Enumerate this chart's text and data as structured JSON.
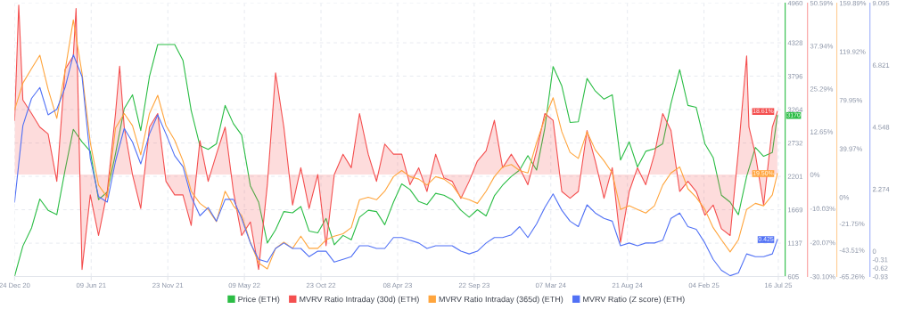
{
  "chart_data": [
    {
      "type": "line",
      "grid": true,
      "legend": "bottom",
      "x": [
        "2020-12-24",
        "2021-01-11",
        "2021-01-30",
        "2021-02-17",
        "2021-03-07",
        "2021-03-26",
        "2021-04-13",
        "2021-05-01",
        "2021-05-20",
        "2021-06-07",
        "2021-06-25",
        "2021-07-14",
        "2021-08-01",
        "2021-08-20",
        "2021-09-07",
        "2021-09-25",
        "2021-10-14",
        "2021-11-01",
        "2021-11-19",
        "2021-12-08",
        "2021-12-26",
        "2022-01-13",
        "2022-02-01",
        "2022-02-19",
        "2022-03-09",
        "2022-03-28",
        "2022-04-15",
        "2022-05-03",
        "2022-05-22",
        "2022-06-09",
        "2022-06-28",
        "2022-07-16",
        "2022-08-03",
        "2022-08-22",
        "2022-09-09",
        "2022-09-27",
        "2022-10-16",
        "2022-11-03",
        "2022-11-21",
        "2022-12-10",
        "2022-12-28",
        "2023-01-15",
        "2023-02-03",
        "2023-02-21",
        "2023-03-11",
        "2023-03-30",
        "2023-04-17",
        "2023-05-05",
        "2023-05-24",
        "2023-06-11",
        "2023-06-30",
        "2023-07-18",
        "2023-08-05",
        "2023-08-24",
        "2023-09-11",
        "2023-09-29",
        "2023-10-18",
        "2023-11-05",
        "2023-11-23",
        "2023-12-12",
        "2023-12-30",
        "2024-01-17",
        "2024-02-05",
        "2024-02-23",
        "2024-03-12",
        "2024-03-31",
        "2024-04-18",
        "2024-05-06",
        "2024-05-25",
        "2024-06-12",
        "2024-07-01",
        "2024-07-19",
        "2024-08-06",
        "2024-08-25",
        "2024-09-12",
        "2024-09-30",
        "2024-10-19",
        "2024-11-06",
        "2024-11-24",
        "2024-12-13",
        "2024-12-31",
        "2025-01-18",
        "2025-02-06",
        "2025-02-24",
        "2025-03-14",
        "2025-04-02",
        "2025-04-20",
        "2025-05-08",
        "2025-05-27",
        "2025-06-14",
        "2025-07-03",
        "2025-07-14"
      ],
      "xlim": [
        "2020-12-24",
        "2025-07-31"
      ],
      "xticks": [
        {
          "value": "2020-12-24",
          "label": "24 Dec 20"
        },
        {
          "value": "2021-06-09",
          "label": "09 Jun 21"
        },
        {
          "value": "2021-11-23",
          "label": "23 Nov 21"
        },
        {
          "value": "2022-05-09",
          "label": "09 May 22"
        },
        {
          "value": "2022-10-23",
          "label": "23 Oct 22"
        },
        {
          "value": "2023-04-08",
          "label": "08 Apr 23"
        },
        {
          "value": "2023-09-22",
          "label": "22 Sep 23"
        },
        {
          "value": "2024-03-07",
          "label": "07 Mar 24"
        },
        {
          "value": "2024-08-21",
          "label": "21 Aug 24"
        },
        {
          "value": "2025-02-04",
          "label": "04 Feb 25"
        },
        {
          "value": "2025-07-16",
          "label": "16 Jul 25"
        }
      ],
      "ylim": [
        605,
        4960
      ],
      "yticks": [
        605,
        1137,
        1669,
        2201,
        2732,
        3264,
        3796,
        4328,
        4960
      ],
      "y2lim": [
        -30.1,
        50.59
      ],
      "y2ticks": [
        {
          "value": -30.1,
          "label": "-30.10%"
        },
        {
          "value": -20.07,
          "label": "-20.07%"
        },
        {
          "value": -10.03,
          "label": "-10.03%"
        },
        {
          "value": 0,
          "label": "0%"
        },
        {
          "value": 12.65,
          "label": "12.65%"
        },
        {
          "value": 25.29,
          "label": "25.29%"
        },
        {
          "value": 37.94,
          "label": "37.94%"
        },
        {
          "value": 50.59,
          "label": "50.59%"
        }
      ],
      "y3lim": [
        -65.26,
        159.89
      ],
      "y3ticks": [
        {
          "value": -65.26,
          "label": "-65.26%"
        },
        {
          "value": -43.51,
          "label": "-43.51%"
        },
        {
          "value": -21.75,
          "label": "-21.75%"
        },
        {
          "value": 0,
          "label": "0%"
        },
        {
          "value": 39.97,
          "label": "39.97%"
        },
        {
          "value": 79.95,
          "label": "79.95%"
        },
        {
          "value": 119.92,
          "label": "119.92%"
        },
        {
          "value": 159.89,
          "label": "159.89%"
        }
      ],
      "series": [
        {
          "name": "Price (ETH)",
          "axis": "y",
          "color": "#2bbd45",
          "values": [
            610,
            1090,
            1380,
            1840,
            1660,
            1590,
            2300,
            2950,
            2750,
            2600,
            1830,
            1950,
            2560,
            3280,
            3500,
            2930,
            3790,
            4300,
            4300,
            4300,
            4050,
            3250,
            2690,
            2630,
            2720,
            3330,
            3040,
            2860,
            2050,
            1790,
            1140,
            1350,
            1640,
            1620,
            1720,
            1330,
            1300,
            1530,
            1110,
            1260,
            1190,
            1550,
            1660,
            1640,
            1430,
            1790,
            2080,
            1990,
            1800,
            1750,
            1930,
            1900,
            1830,
            1660,
            1550,
            1670,
            1570,
            1890,
            2060,
            2200,
            2300,
            2530,
            2300,
            2970,
            3950,
            3640,
            3060,
            3070,
            3760,
            3560,
            3430,
            3500,
            2460,
            2750,
            2350,
            2600,
            2640,
            2720,
            3360,
            3900,
            3330,
            3300,
            2720,
            2500,
            1900,
            1790,
            1590,
            2200,
            2660,
            2520,
            2580,
            3170
          ],
          "value_labels": [
            null,
            null,
            null,
            null,
            null,
            null,
            null,
            null,
            null,
            null,
            null,
            null,
            null,
            null,
            null,
            null,
            null,
            null,
            null,
            null,
            null,
            null,
            null,
            null,
            null,
            null,
            null,
            null,
            null,
            null,
            null,
            null,
            null,
            null,
            null,
            null,
            null,
            null,
            null,
            null,
            null,
            null,
            null,
            null,
            null,
            null,
            null,
            null,
            null,
            null,
            null,
            null,
            null,
            null,
            null,
            null,
            null,
            null,
            null,
            null,
            null,
            null,
            null,
            null,
            null,
            null,
            null,
            null,
            null,
            null,
            null,
            null,
            null,
            null,
            null,
            null,
            null,
            null,
            null,
            null,
            null,
            null,
            null,
            null,
            null,
            null,
            null,
            null,
            null,
            null,
            null,
            "3170"
          ]
        },
        {
          "name": "MVRV Ratio Intraday (30d) (ETH)",
          "type": "area",
          "axis": "y2",
          "color": "#f44f4f",
          "x": [
            "2020-12-24",
            "2021-01-02",
            "2021-01-11",
            "2021-01-30",
            "2021-02-17",
            "2021-03-07",
            "2021-03-26",
            "2021-04-13",
            "2021-05-01",
            "2021-05-07",
            "2021-05-20",
            "2021-06-07",
            "2021-06-25",
            "2021-07-14",
            "2021-08-01",
            "2021-08-10",
            "2021-08-20",
            "2021-09-07",
            "2021-09-25",
            "2021-10-14",
            "2021-11-01",
            "2021-11-19",
            "2021-12-08",
            "2021-12-26",
            "2022-01-13",
            "2022-02-01",
            "2022-02-19",
            "2022-03-09",
            "2022-03-28",
            "2022-04-15",
            "2022-05-03",
            "2022-05-22",
            "2022-06-09",
            "2022-06-28",
            "2022-07-16",
            "2022-08-03",
            "2022-08-22",
            "2022-09-09",
            "2022-09-27",
            "2022-10-16",
            "2022-11-03",
            "2022-11-21",
            "2022-12-10",
            "2022-12-28",
            "2023-01-15",
            "2023-02-03",
            "2023-02-21",
            "2023-03-11",
            "2023-03-30",
            "2023-04-17",
            "2023-05-05",
            "2023-05-24",
            "2023-06-11",
            "2023-06-30",
            "2023-07-18",
            "2023-08-05",
            "2023-08-24",
            "2023-09-11",
            "2023-09-29",
            "2023-10-18",
            "2023-11-05",
            "2023-11-23",
            "2023-12-12",
            "2023-12-30",
            "2024-01-17",
            "2024-02-05",
            "2024-02-23",
            "2024-03-12",
            "2024-03-31",
            "2024-04-18",
            "2024-05-06",
            "2024-05-25",
            "2024-06-12",
            "2024-07-01",
            "2024-07-19",
            "2024-08-06",
            "2024-08-25",
            "2024-09-12",
            "2024-09-30",
            "2024-10-19",
            "2024-11-06",
            "2024-11-24",
            "2024-12-13",
            "2024-12-31",
            "2025-01-18",
            "2025-02-06",
            "2025-02-24",
            "2025-03-14",
            "2025-04-02",
            "2025-04-20",
            "2025-05-08",
            "2025-05-13",
            "2025-05-27",
            "2025-06-14",
            "2025-07-03",
            "2025-07-14"
          ],
          "values": [
            16,
            50,
            22,
            18,
            14,
            12,
            -2,
            31,
            35,
            49,
            -28,
            -6,
            -18,
            -5,
            18,
            32,
            14,
            0,
            -10,
            14,
            18,
            -2,
            -6,
            -6,
            -15,
            10,
            -2,
            6,
            14,
            -5,
            -18,
            -14,
            -28,
            -3,
            30,
            14,
            -9,
            2,
            -10,
            0,
            -21,
            0,
            6,
            2,
            18,
            6,
            -2,
            9,
            6,
            6,
            -3,
            2,
            -5,
            6,
            -1,
            -2,
            -7,
            -2,
            4,
            7,
            16,
            2,
            6,
            2,
            -3,
            7,
            18,
            16,
            -5,
            -7,
            -5,
            13,
            4,
            -7,
            2,
            -20,
            -5,
            2,
            -3,
            6,
            18,
            13,
            -5,
            -2,
            -5,
            -12,
            -9,
            -16,
            -18,
            7,
            35,
            14,
            6,
            -9,
            14,
            18.61
          ],
          "value_labels": [
            null,
            null,
            null,
            null,
            null,
            null,
            null,
            null,
            null,
            null,
            null,
            null,
            null,
            null,
            null,
            null,
            null,
            null,
            null,
            null,
            null,
            null,
            null,
            null,
            null,
            null,
            null,
            null,
            null,
            null,
            null,
            null,
            null,
            null,
            null,
            null,
            null,
            null,
            null,
            null,
            null,
            null,
            null,
            null,
            null,
            null,
            null,
            null,
            null,
            null,
            null,
            null,
            null,
            null,
            null,
            null,
            null,
            null,
            null,
            null,
            null,
            null,
            null,
            null,
            null,
            null,
            null,
            null,
            null,
            null,
            null,
            null,
            null,
            null,
            null,
            null,
            null,
            null,
            null,
            null,
            null,
            null,
            null,
            null,
            null,
            null,
            null,
            null,
            null,
            null,
            null,
            null,
            null,
            null,
            null,
            "18.61%"
          ]
        },
        {
          "name": "MVRV Ratio Intraday (365d) (ETH)",
          "axis": "y3",
          "color": "#ffa53d",
          "values": [
            72,
            94,
            106,
            117,
            89,
            65,
            104,
            146,
            102,
            45,
            10,
            0,
            57,
            69,
            59,
            35,
            69,
            84,
            59,
            47,
            30,
            5,
            -5,
            -10,
            -20,
            5,
            -7,
            -15,
            -37,
            -54,
            -59,
            -42,
            -37,
            -42,
            -32,
            -42,
            -42,
            -35,
            -32,
            -30,
            -25,
            -2,
            0,
            -2,
            5,
            17,
            22,
            17,
            15,
            10,
            17,
            15,
            10,
            0,
            -2,
            -5,
            5,
            17,
            25,
            27,
            22,
            20,
            45,
            65,
            82,
            54,
            37,
            32,
            54,
            39,
            30,
            20,
            -10,
            -7,
            -10,
            -13,
            -7,
            10,
            20,
            25,
            7,
            0,
            -10,
            -25,
            -35,
            -45,
            -35,
            -10,
            -5,
            -7,
            2,
            19.5
          ],
          "value_labels": [
            null,
            null,
            null,
            null,
            null,
            null,
            null,
            null,
            null,
            null,
            null,
            null,
            null,
            null,
            null,
            null,
            null,
            null,
            null,
            null,
            null,
            null,
            null,
            null,
            null,
            null,
            null,
            null,
            null,
            null,
            null,
            null,
            null,
            null,
            null,
            null,
            null,
            null,
            null,
            null,
            null,
            null,
            null,
            null,
            null,
            null,
            null,
            null,
            null,
            null,
            null,
            null,
            null,
            null,
            null,
            null,
            null,
            null,
            null,
            null,
            null,
            null,
            null,
            null,
            null,
            null,
            null,
            null,
            null,
            null,
            null,
            null,
            null,
            null,
            null,
            null,
            null,
            null,
            null,
            null,
            null,
            null,
            null,
            null,
            null,
            null,
            null,
            null,
            null,
            null,
            null,
            "19.50%"
          ]
        }
      ]
    },
    {
      "type": "line",
      "legend": "bottom",
      "tick_labels": "y",
      "x": [
        "2020-12-24",
        "2021-01-11",
        "2021-01-30",
        "2021-02-17",
        "2021-03-07",
        "2021-03-26",
        "2021-04-13",
        "2021-05-01",
        "2021-05-20",
        "2021-06-07",
        "2021-06-25",
        "2021-07-14",
        "2021-08-01",
        "2021-08-20",
        "2021-09-07",
        "2021-09-25",
        "2021-10-14",
        "2021-11-01",
        "2021-11-19",
        "2021-12-08",
        "2021-12-26",
        "2022-01-13",
        "2022-02-01",
        "2022-02-19",
        "2022-03-09",
        "2022-03-28",
        "2022-04-15",
        "2022-05-03",
        "2022-05-22",
        "2022-06-09",
        "2022-06-28",
        "2022-07-16",
        "2022-08-03",
        "2022-08-22",
        "2022-09-09",
        "2022-09-27",
        "2022-10-16",
        "2022-11-03",
        "2022-11-21",
        "2022-12-10",
        "2022-12-28",
        "2023-01-15",
        "2023-02-03",
        "2023-02-21",
        "2023-03-11",
        "2023-03-30",
        "2023-04-17",
        "2023-05-05",
        "2023-05-24",
        "2023-06-11",
        "2023-06-30",
        "2023-07-18",
        "2023-08-05",
        "2023-08-24",
        "2023-09-11",
        "2023-09-29",
        "2023-10-18",
        "2023-11-05",
        "2023-11-23",
        "2023-12-12",
        "2023-12-30",
        "2024-01-17",
        "2024-02-05",
        "2024-02-23",
        "2024-03-12",
        "2024-03-31",
        "2024-04-18",
        "2024-05-06",
        "2024-05-25",
        "2024-06-12",
        "2024-07-01",
        "2024-07-19",
        "2024-08-06",
        "2024-08-25",
        "2024-09-12",
        "2024-09-30",
        "2024-10-19",
        "2024-11-06",
        "2024-11-24",
        "2024-12-13",
        "2024-12-31",
        "2025-01-18",
        "2025-02-06",
        "2025-02-24",
        "2025-03-14",
        "2025-04-02",
        "2025-04-20",
        "2025-05-08",
        "2025-05-27",
        "2025-06-14",
        "2025-07-03",
        "2025-07-14"
      ],
      "xlim": [
        "2020-12-24",
        "2025-07-31"
      ],
      "ylim": [
        -0.93,
        9.095
      ],
      "yticks": [
        -0.93,
        -0.62,
        -0.31,
        0,
        2.274,
        4.548,
        6.821,
        9.095
      ],
      "series": [
        {
          "name": "MVRV Ratio (Z score) (ETH)",
          "color": "#5171f5",
          "values": [
            1.8,
            4.6,
            5.6,
            6.0,
            5.0,
            5.2,
            6.0,
            7.2,
            6.4,
            3.4,
            2.0,
            1.8,
            3.3,
            4.5,
            4.0,
            3.2,
            4.3,
            5.0,
            4.3,
            3.5,
            3.1,
            2.0,
            1.3,
            1.6,
            1.1,
            1.9,
            1.9,
            1.2,
            0.3,
            -0.3,
            -0.4,
            0.1,
            0.3,
            0.1,
            0.1,
            -0.2,
            0,
            0,
            -0.4,
            -0.3,
            -0.2,
            0.2,
            0.2,
            0.1,
            0.1,
            0.5,
            0.5,
            0.4,
            0.3,
            0.1,
            0.2,
            0.2,
            0.2,
            0,
            -0.1,
            0,
            0.3,
            0.5,
            0.5,
            0.6,
            0.9,
            0.5,
            1.0,
            1.6,
            2.1,
            1.5,
            1.1,
            0.9,
            1.7,
            1.4,
            1.2,
            1.1,
            0.2,
            0.3,
            0.2,
            0.3,
            0.3,
            0.4,
            1.2,
            1.4,
            0.9,
            0.8,
            0.3,
            -0.3,
            -0.7,
            -0.9,
            -0.8,
            -0.1,
            -0.2,
            -0.2,
            -0.1,
            0.425
          ],
          "value_labels": [
            null,
            null,
            null,
            null,
            null,
            null,
            null,
            null,
            null,
            null,
            null,
            null,
            null,
            null,
            null,
            null,
            null,
            null,
            null,
            null,
            null,
            null,
            null,
            null,
            null,
            null,
            null,
            null,
            null,
            null,
            null,
            null,
            null,
            null,
            null,
            null,
            null,
            null,
            null,
            null,
            null,
            null,
            null,
            null,
            null,
            null,
            null,
            null,
            null,
            null,
            null,
            null,
            null,
            null,
            null,
            null,
            null,
            null,
            null,
            null,
            null,
            null,
            null,
            null,
            null,
            null,
            null,
            null,
            null,
            null,
            null,
            null,
            null,
            null,
            null,
            null,
            null,
            null,
            null,
            null,
            null,
            null,
            null,
            null,
            null,
            null,
            null,
            null,
            null,
            null,
            null,
            "0.425"
          ]
        }
      ]
    }
  ]
}
